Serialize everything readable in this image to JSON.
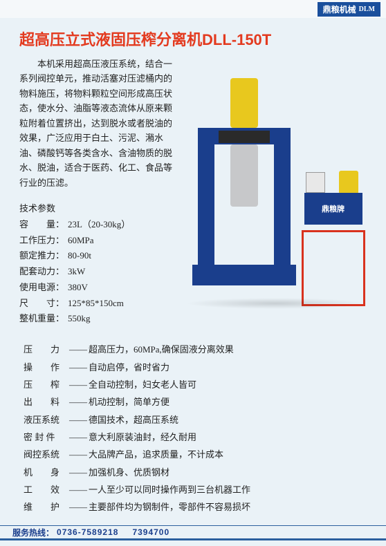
{
  "brand": {
    "name": "鼎粮机械",
    "logo": "DLM"
  },
  "title": "超高压立式液固压榨分离机DLL-150T",
  "description": "本机采用超高压液压系统，结合一系列阀控单元，推动活塞对压滤桶内的物料施压，将物料颗粒空间形成高压状态，使水分、油脂等液态流体从原来颗粒附着位置挤出，达到脱水或者脱油的效果，广泛应用于白土、污泥、潲水油、磷酸钙等各类含水、含油物质的脱水、脱油，适合于医药、化工、食品等行业的压滤。",
  "specs_title": "技术参数",
  "specs": [
    {
      "label": "容　　量：",
      "value": "23L（20-30kg）"
    },
    {
      "label": "工作压力：",
      "value": "60MPa"
    },
    {
      "label": "额定推力：",
      "value": "80-90t"
    },
    {
      "label": "配套动力：",
      "value": "3kW"
    },
    {
      "label": "使用电源：",
      "value": "380V"
    },
    {
      "label": "尺　　寸：",
      "value": "125*85*150cm"
    },
    {
      "label": "整机重量：",
      "value": "550kg"
    }
  ],
  "machine_label": "鼎粮牌",
  "features": [
    {
      "label": "压　　力",
      "value": "超高压力，60MPa,确保固液分离效果"
    },
    {
      "label": "操　　作",
      "value": "自动启停，省时省力"
    },
    {
      "label": "压　　榨",
      "value": "全自动控制，妇女老人皆可"
    },
    {
      "label": "出　　料",
      "value": "机动控制，简单方便"
    },
    {
      "label": "液压系统",
      "value": "德国技术，超高压系统"
    },
    {
      "label": "密 封 件",
      "value": "意大利原装油封，经久耐用"
    },
    {
      "label": "阀控系统",
      "value": "大品牌产品，追求质量，不计成本"
    },
    {
      "label": "机　　身",
      "value": "加强机身、优质钢材"
    },
    {
      "label": "工　　效",
      "value": "一人至少可以同时操作两到三台机器工作"
    },
    {
      "label": "维　　护",
      "value": "主要部件均为钢制件，零部件不容易损坏"
    }
  ],
  "footer": {
    "label": "服务热线：",
    "phone1": "0736-7589218",
    "phone2": "7394700"
  },
  "colors": {
    "title": "#e33a1f",
    "brand_bg": "#1a4f9c",
    "machine_blue": "#1a3e8c",
    "machine_yellow": "#e8c81e",
    "stand_red": "#d9321e",
    "page_bg": "#eaf2f7"
  }
}
